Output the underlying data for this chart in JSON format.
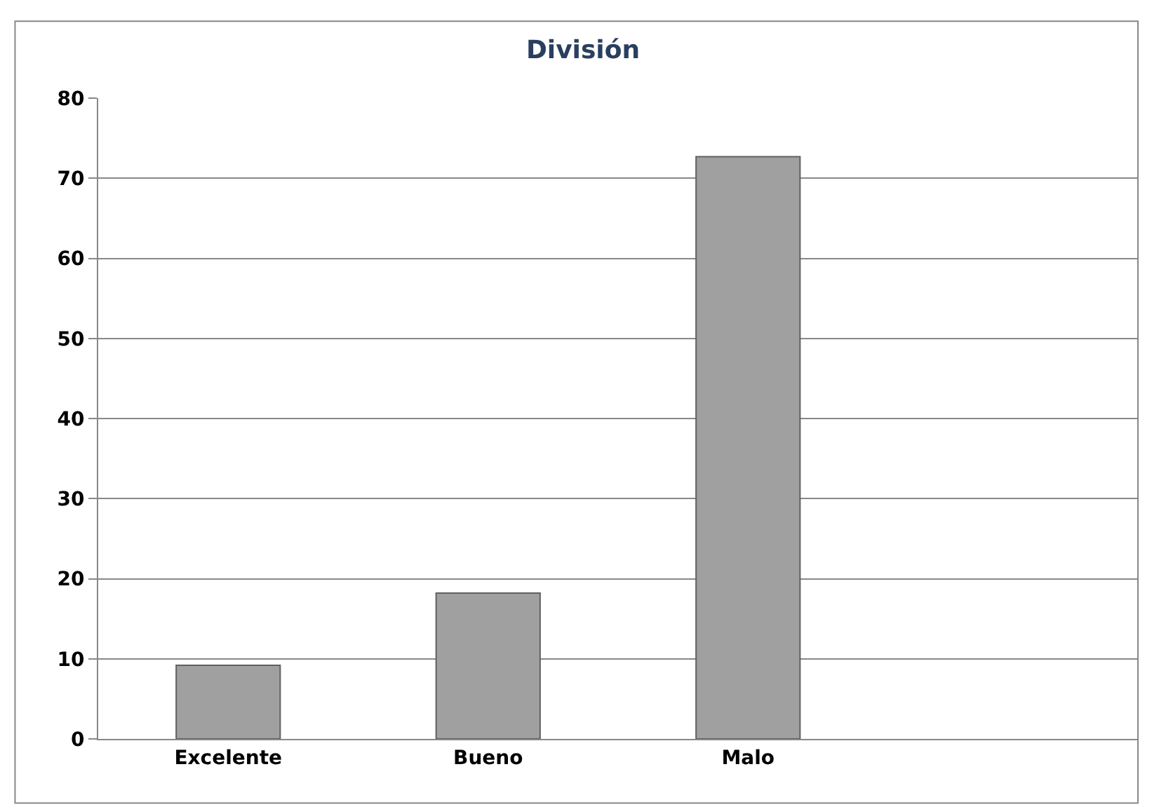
{
  "chart_data": {
    "type": "bar",
    "title": "División",
    "categories": [
      "Excelente",
      "Bueno",
      "Malo",
      null
    ],
    "values": [
      9.2,
      18.2,
      72.7,
      null
    ],
    "color": "#a0a0a0",
    "ylim": [
      0,
      80
    ],
    "yticks": [
      0,
      10,
      20,
      30,
      40,
      50,
      60,
      70,
      80
    ],
    "grid": "y",
    "legend": false
  }
}
